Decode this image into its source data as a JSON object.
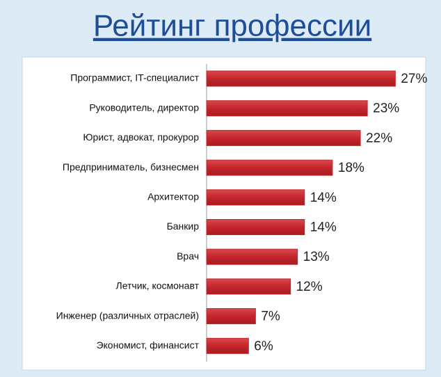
{
  "chart_data": {
    "type": "bar",
    "orientation": "horizontal",
    "title": "Рейтинг профессии",
    "categories": [
      "Программист, IT-специалист",
      "Руководитель, директор",
      "Юрист, адвокат, прокурор",
      "Предприниматель, бизнесмен",
      "Архитектор",
      "Банкир",
      "Врач",
      "Летчик, космонавт",
      "Инженер (различных отраслей)",
      "Экономист, финансист"
    ],
    "values": [
      27,
      23,
      22,
      18,
      14,
      14,
      13,
      12,
      7,
      6
    ],
    "value_labels": [
      "27%",
      "23%",
      "22%",
      "18%",
      "14%",
      "14%",
      "13%",
      "12%",
      "7%",
      "6%"
    ],
    "color": "#c3262c"
  }
}
